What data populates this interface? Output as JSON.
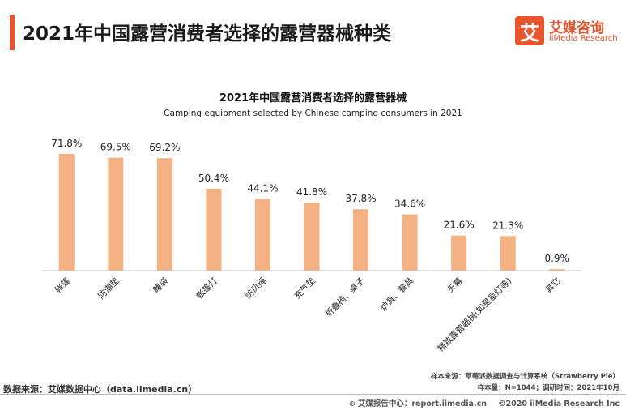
{
  "header": {
    "title": "2021年中国露营消费者选择的露营器械种类"
  },
  "logo": {
    "mark": "艾",
    "name_cn": "艾媒咨询",
    "name_en": "iiMedia Research"
  },
  "chart_data": {
    "type": "bar",
    "title": "2021年中国露营消费者选择的露营器械",
    "subtitle": "Camping equipment selected by Chinese camping consumers in 2021",
    "categories": [
      "帐篷",
      "防潮垫",
      "睡袋",
      "帐篷灯",
      "防风绳",
      "充气垫",
      "折叠椅、桌子",
      "炉具、餐具",
      "天幕",
      "精致露营器械(如星星灯等)",
      "其它"
    ],
    "values": [
      71.8,
      69.5,
      69.2,
      50.4,
      44.1,
      41.8,
      37.8,
      34.6,
      21.6,
      21.3,
      0.9
    ],
    "value_labels": [
      "71.8%",
      "69.5%",
      "69.2%",
      "50.4%",
      "44.1%",
      "41.8%",
      "37.8%",
      "34.6%",
      "21.6%",
      "21.3%",
      "0.9%"
    ],
    "unit": "%",
    "ylim": [
      0,
      75
    ],
    "grid": false,
    "bar_color": "#f4b183"
  },
  "sources": {
    "data_source": "数据来源：艾媒数据中心（data.iimedia.cn）",
    "sample_source": "样本来源：草莓派数据调查与计算系统（Strawberry Pie）",
    "sample_info": "样本量：N=1044；调研时间：2021年10月"
  },
  "footer": {
    "center": "艾媒报告中心：report.iimedia.cn",
    "copyright": "©2020  iiMedia Research  Inc"
  }
}
